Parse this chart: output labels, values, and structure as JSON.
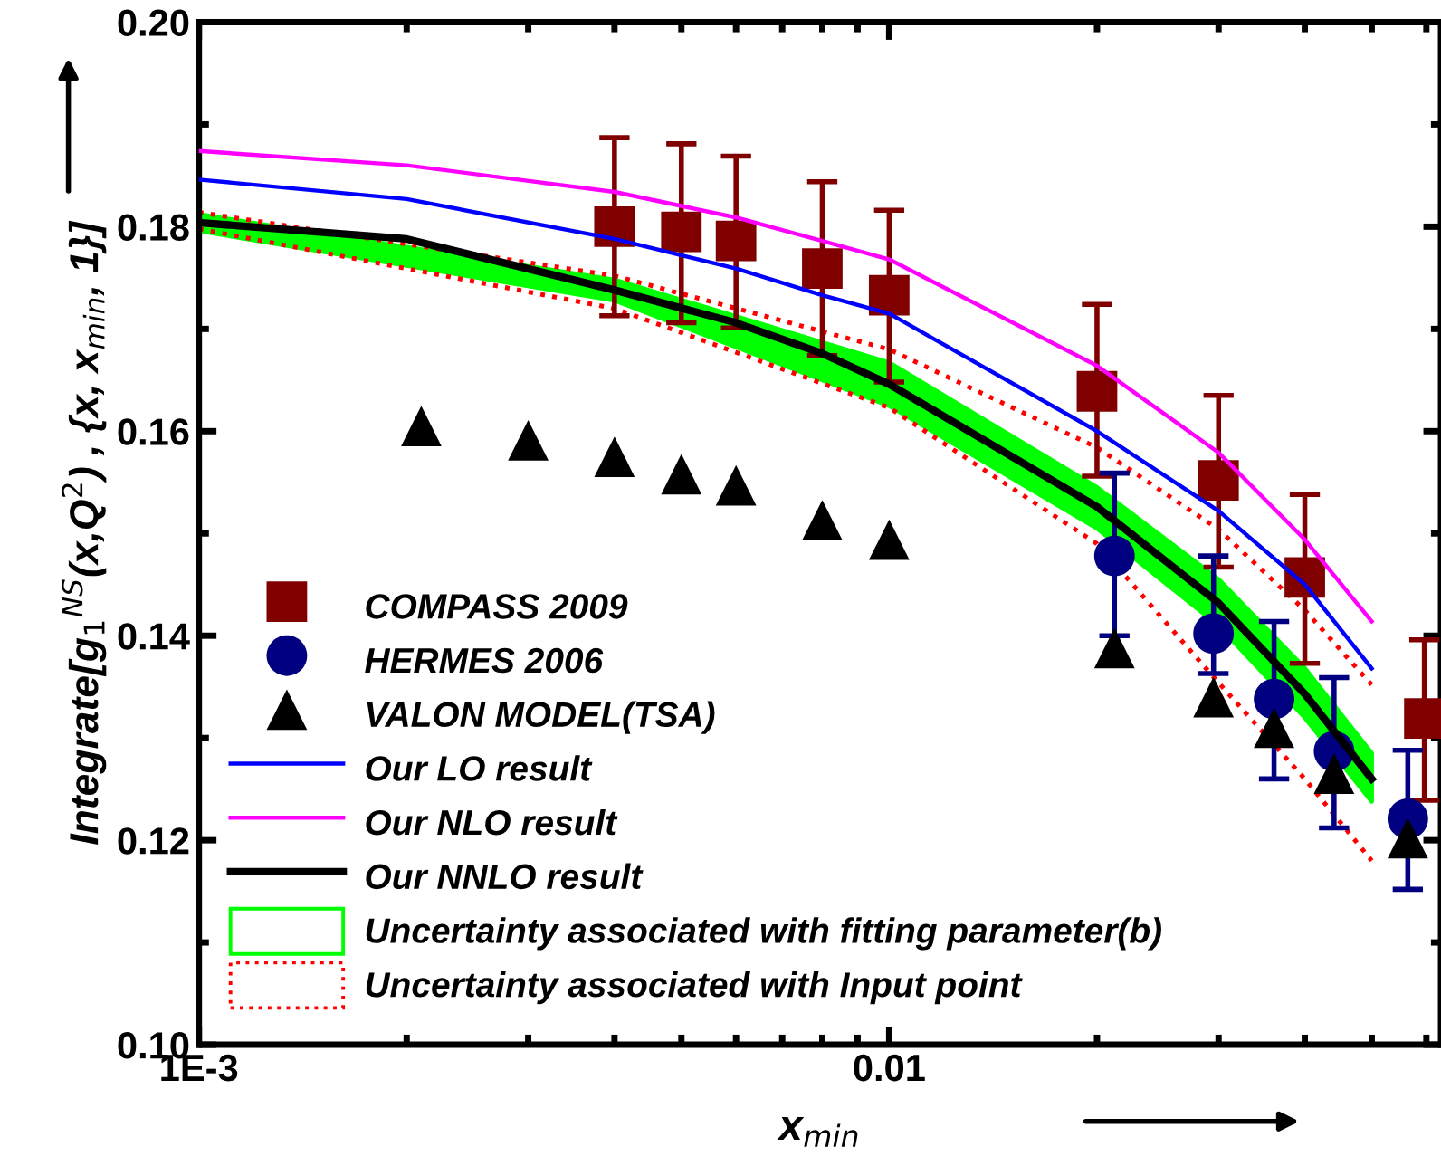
{
  "chart_data": {
    "type": "scatter",
    "xlabel": "x$_{min}$",
    "ylabel": "Integrate[g$_{1}$$^{NS}$(x,Q$^{2}$) , {x, x$_{min}$, 1}]",
    "log": "x",
    "xlim": [
      0.001,
      0.063
    ],
    "xticks": [
      {
        "value": 0.001,
        "label": "1E-3"
      },
      0.01
    ],
    "ylim": [
      0.1,
      0.2
    ],
    "yticks": [
      {
        "value": 0.1,
        "label": "0.10"
      },
      0.12,
      0.14,
      0.16,
      0.18,
      {
        "value": 0.2,
        "label": "0.20"
      }
    ],
    "grid": false,
    "legend": "bottom left",
    "series": [
      {
        "name": "COMPASS 2009",
        "marker": "square",
        "color": "#800000",
        "x": [
          0.004,
          0.005,
          0.006,
          0.008,
          0.01,
          0.02,
          0.03,
          0.04,
          0.0596
        ],
        "values": [
          0.18,
          0.1795,
          0.1786,
          0.1759,
          0.1733,
          0.1639,
          0.1552,
          0.1457,
          0.1319
        ],
        "errors": [
          [
            0.1713,
            0.1887
          ],
          [
            0.1706,
            0.1881
          ],
          [
            0.1701,
            0.1869
          ],
          [
            0.1674,
            0.1844
          ],
          [
            0.1648,
            0.1816
          ],
          [
            0.1556,
            0.1724
          ],
          [
            0.1467,
            0.1635
          ],
          [
            0.1373,
            0.1538
          ],
          [
            0.1239,
            0.1396
          ]
        ]
      },
      {
        "name": "HERMES 2006",
        "marker": "circle",
        "color": "#000080",
        "x": [
          0.0212,
          0.0295,
          0.0361,
          0.0441,
          0.0564
        ],
        "values": [
          0.1478,
          0.1402,
          0.1338,
          0.1287,
          0.1221
        ],
        "errors": [
          [
            0.14,
            0.1559
          ],
          [
            0.1363,
            0.1478
          ],
          [
            0.126,
            0.1414
          ],
          [
            0.1212,
            0.1359
          ],
          [
            0.1152,
            0.1288
          ]
        ]
      },
      {
        "name": "VALON MODEL(TSA)",
        "marker": "triangle",
        "color": "#000000",
        "x": [
          0.0021,
          0.003,
          0.004,
          0.005,
          0.006,
          0.008,
          0.01,
          0.0212,
          0.0295,
          0.0361,
          0.0441,
          0.0564
        ],
        "values": [
          0.1605,
          0.1591,
          0.1575,
          0.1558,
          0.1547,
          0.1513,
          0.1494,
          0.1388,
          0.134,
          0.131,
          0.1265,
          0.1202
        ]
      },
      {
        "name": "Our LO result",
        "type": "line",
        "marker": "none",
        "color": "#0000ff",
        "x": [
          0.001,
          0.002,
          0.004,
          0.006,
          0.008,
          0.01,
          0.02,
          0.03,
          0.04,
          0.05
        ],
        "values": [
          0.1846,
          0.1827,
          0.1788,
          0.1759,
          0.1733,
          0.1715,
          0.16,
          0.1522,
          0.145,
          0.1368
        ]
      },
      {
        "name": "Our NLO result",
        "type": "line",
        "marker": "none",
        "color": "#ff00ff",
        "x": [
          0.001,
          0.002,
          0.004,
          0.006,
          0.008,
          0.01,
          0.02,
          0.03,
          0.04,
          0.05
        ],
        "values": [
          0.1874,
          0.186,
          0.1834,
          0.1809,
          0.1786,
          0.1768,
          0.1664,
          0.1579,
          0.1494,
          0.1414
        ]
      },
      {
        "name": "Our NNLO result",
        "type": "line",
        "marker": "none",
        "color": "#000000",
        "x": [
          0.001,
          0.002,
          0.004,
          0.006,
          0.008,
          0.01,
          0.02,
          0.03,
          0.04,
          0.05
        ],
        "values": [
          0.1804,
          0.1788,
          0.1738,
          0.1706,
          0.1676,
          0.1646,
          0.1526,
          0.1432,
          0.1343,
          0.126
        ]
      },
      {
        "name": "Uncertainty associated with fitting parameter(b)",
        "type": "area",
        "color": "#00ff00",
        "line_style": "solid",
        "x": [
          0.001,
          0.004,
          0.01,
          0.02,
          0.03,
          0.04,
          0.05
        ],
        "values": [
          null,
          null,
          null,
          null,
          null,
          null,
          null
        ],
        "lower": [
          0.1796,
          0.1728,
          0.1625,
          0.1505,
          0.141,
          0.132,
          0.1238
        ],
        "upper": [
          0.1812,
          0.1748,
          0.1667,
          0.1545,
          0.1455,
          0.1368,
          0.1285
        ]
      },
      {
        "name": "Uncertainty associated with Input point",
        "type": "line",
        "marker": "none",
        "color": "#ff0000",
        "line_style": "dotted",
        "x": [
          0.001,
          0.004,
          0.01,
          0.02,
          0.03,
          0.04,
          0.05
        ],
        "values": [
          0.1814,
          0.1752,
          0.168,
          0.1584,
          0.1504,
          0.1425,
          0.1352
        ]
      },
      {
        "type": "line",
        "marker": "none",
        "color": "#ff0000",
        "line_style": "dotted",
        "x": [
          0.001,
          0.004,
          0.01,
          0.02,
          0.03,
          0.04,
          0.05
        ],
        "values": [
          0.1798,
          0.172,
          0.1623,
          0.149,
          0.1354,
          0.126,
          0.118
        ]
      }
    ]
  }
}
